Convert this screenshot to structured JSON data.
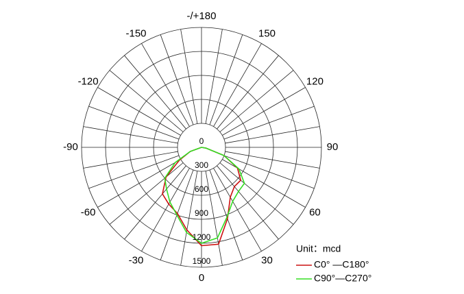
{
  "chart_data": {
    "type": "polar",
    "x": [
      -90,
      -80,
      -70,
      -60,
      -50,
      -40,
      -30,
      -20,
      -10,
      0,
      10,
      20,
      30,
      40,
      50,
      60,
      70,
      80,
      90
    ],
    "series": [
      {
        "name": "C0° —C180°",
        "color": "#cc1111",
        "values": [
          0,
          0,
          150,
          320,
          580,
          760,
          820,
          880,
          1050,
          1230,
          1230,
          950,
          720,
          640,
          640,
          520,
          300,
          60,
          0
        ]
      },
      {
        "name": "C90°—C270°",
        "color": "#33dd22",
        "values": [
          0,
          0,
          150,
          380,
          600,
          680,
          790,
          900,
          1080,
          1200,
          1150,
          930,
          780,
          720,
          700,
          540,
          300,
          60,
          0
        ]
      }
    ],
    "rlim": [
      0,
      1500
    ],
    "rticks": [
      0,
      300,
      600,
      900,
      1200,
      1500
    ],
    "xticks": [
      {
        "value": 180,
        "label": "-/+180"
      },
      -150,
      -120,
      -90,
      -60,
      -30,
      0,
      30,
      60,
      90,
      120,
      150
    ],
    "unit_label": "Unit：mcd",
    "legend": "bottom-right",
    "grid": true
  }
}
